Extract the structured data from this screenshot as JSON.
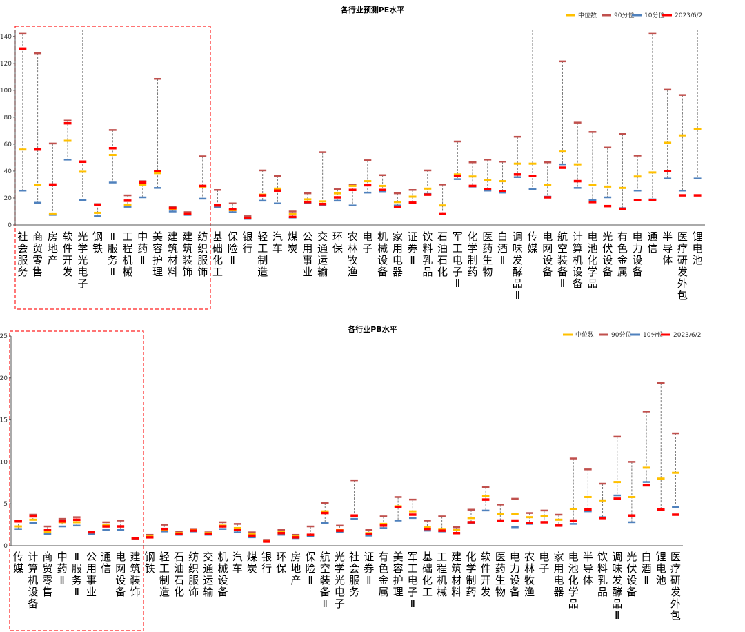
{
  "colors": {
    "median": "#FFC000",
    "p90": "#C0504D",
    "p10": "#4F81BD",
    "current": "#FF0000"
  },
  "chart_data": [
    {
      "type": "range",
      "title": "各行业预测PE水平",
      "legend": [
        "中位数",
        "90分位",
        "10分位",
        "2023/6/2"
      ],
      "ylim": [
        0,
        145
      ],
      "yticks": [
        0,
        20,
        40,
        60,
        80,
        100,
        120,
        140
      ],
      "categories": [
        "社会服务",
        "商贸零售",
        "房地产",
        "软件开发",
        "光学光电子",
        "钢铁",
        "Ⅱ服务Ⅱ",
        "工程机械",
        "中药Ⅱ",
        "美容护理",
        "建筑材料",
        "建筑装饰",
        "纺织服饰",
        "基础化工",
        "保险Ⅱ",
        "银行",
        "轻工制造",
        "汽车",
        "煤炭",
        "公用事业",
        "交通运输",
        "环保",
        "农林牧渔",
        "电子",
        "机械设备",
        "家用电器",
        "证券Ⅱ",
        "饮料乳品",
        "石油石化",
        "军工电子Ⅱ",
        "化学制药",
        "医药生物",
        "白酒Ⅱ",
        "调味发酵品Ⅱ",
        "传媒",
        "电网设备",
        "航空装备Ⅱ",
        "计算机设备",
        "电池化学品",
        "光伏设备",
        "有色金属",
        "电力设备",
        "通信",
        "半导体",
        "医疗研发外包",
        "锂电池"
      ],
      "series": [
        {
          "name": "中位数",
          "values": [
            56,
            29.5,
            8.5,
            62.5,
            39.5,
            9,
            52,
            15,
            30,
            38.5,
            12,
            8.5,
            28.5,
            15,
            11,
            5,
            22.5,
            27,
            8,
            19,
            17.5,
            23.5,
            29,
            32.5,
            29,
            17,
            21,
            27,
            14.5,
            37.5,
            36,
            33.5,
            32.5,
            45.5,
            45.5,
            29.5,
            54.5,
            45,
            29.5,
            28.5,
            27.5,
            36,
            39,
            61,
            66.5,
            71
          ]
        },
        {
          "name": "90分位",
          "values": [
            142,
            127.5,
            60.5,
            77.5,
            149.5,
            15.5,
            70.5,
            22,
            32.5,
            108.5,
            13.5,
            9.5,
            51,
            26,
            16,
            6.5,
            40.5,
            36.5,
            10,
            23.5,
            54,
            26.5,
            30,
            48,
            37,
            23.5,
            26,
            40.5,
            30,
            62,
            46.5,
            48.5,
            47,
            65.5,
            150,
            46.5,
            121.5,
            76,
            69,
            57.5,
            67.5,
            51.5,
            142,
            100.5,
            96.5,
            150
          ]
        },
        {
          "name": "10分位",
          "values": [
            25.5,
            16.5,
            7.5,
            48.5,
            18.5,
            6.5,
            31.5,
            13.5,
            20.5,
            27.5,
            10,
            7.5,
            19.5,
            13,
            9.5,
            4.5,
            18,
            16,
            5.5,
            16.5,
            15,
            18,
            14.5,
            24,
            24.5,
            14.5,
            16.5,
            23,
            8,
            34,
            28.5,
            25.5,
            24,
            35.5,
            26.5,
            21,
            45,
            27.5,
            18.5,
            20.5,
            12.5,
            25.5,
            19,
            34.5,
            25.5,
            34.5
          ]
        },
        {
          "name": "2023/6/2",
          "values": [
            131,
            56,
            30,
            75.5,
            47,
            15,
            57,
            18,
            31.5,
            40,
            12.5,
            8.5,
            29,
            14.5,
            11.5,
            5,
            22,
            25.5,
            6,
            17,
            15.5,
            20.5,
            26,
            29.5,
            26,
            13.5,
            16.5,
            22.5,
            8.5,
            36.5,
            29,
            26.5,
            25,
            37.5,
            36.5,
            20.5,
            42.5,
            32.5,
            17,
            14,
            12,
            18.5,
            18.5,
            40,
            22,
            22
          ]
        }
      ]
    },
    {
      "type": "range",
      "title": "各行业PB水平",
      "legend": [
        "中位数",
        "90分位",
        "10分位",
        "2023/6/2"
      ],
      "ylim": [
        0,
        25
      ],
      "yticks": [
        0,
        5,
        10,
        15,
        20,
        25
      ],
      "categories": [
        "传媒",
        "计算机设备",
        "商贸零售",
        "中药Ⅱ",
        "Ⅱ服务Ⅱ",
        "公用事业",
        "通信",
        "电网设备",
        "建筑装饰",
        "钢铁",
        "轻工制造",
        "石油石化",
        "纺织服饰",
        "交通运输",
        "机械设备",
        "汽车",
        "煤炭",
        "银行",
        "环保",
        "房地产",
        "保险Ⅱ",
        "航空装备Ⅱ",
        "光学光电子",
        "社会服务",
        "证券Ⅱ",
        "有色金属",
        "美容护理",
        "军工电子Ⅱ",
        "基础化工",
        "工程机械",
        "建筑材料",
        "化学制药",
        "软件开发",
        "医药生物",
        "电力设备",
        "农林牧渔",
        "电子",
        "家用电器",
        "电池化学品",
        "半导体",
        "饮料乳品",
        "调味发酵品Ⅱ",
        "光伏设备",
        "白酒Ⅱ",
        "锂电池",
        "医疗研发外包"
      ],
      "series": [
        {
          "name": "中位数",
          "values": [
            2.3,
            3.1,
            1.6,
            2.8,
            2.8,
            1.6,
            2.5,
            2.3,
            0.9,
            1.1,
            1.9,
            1.5,
            1.9,
            1.5,
            2.4,
            2.1,
            1.4,
            0.6,
            1.6,
            1.1,
            1.3,
            4.1,
            1.9,
            3.5,
            1.5,
            2.6,
            4.7,
            4.1,
            2.2,
            2,
            1.9,
            3.3,
            5.9,
            3.8,
            3.8,
            3.4,
            3.5,
            3.1,
            4.4,
            5.8,
            5.4,
            7.6,
            5.8,
            9.3,
            8,
            8.7
          ]
        },
        {
          "name": "90分位",
          "values": [
            3,
            3.7,
            2.3,
            3.2,
            3.4,
            1.7,
            2.8,
            3,
            0.95,
            1.3,
            2.5,
            1.7,
            2,
            1.6,
            2.8,
            2.6,
            1.6,
            0.7,
            1.9,
            1.3,
            2.3,
            5.1,
            2.4,
            7.8,
            1.9,
            3.5,
            5.8,
            5.5,
            3,
            3.5,
            2.2,
            4.3,
            7,
            4.9,
            5.6,
            3.9,
            4.2,
            3.7,
            10.4,
            9.1,
            7.4,
            13,
            10,
            16,
            19.4,
            13.4
          ]
        },
        {
          "name": "10分位",
          "values": [
            2,
            2.7,
            1.4,
            2.3,
            2.4,
            1.4,
            1.9,
            1.9,
            0.85,
            1,
            1.7,
            1.3,
            1.7,
            1.3,
            2,
            1.6,
            1,
            0.5,
            1.3,
            0.9,
            1.1,
            2.7,
            1.6,
            3.2,
            1.2,
            2.1,
            3,
            3.3,
            1.8,
            1.7,
            1.5,
            2.7,
            4.2,
            3,
            2.2,
            2.6,
            2.8,
            2.5,
            2.6,
            4.1,
            3.4,
            6,
            2.8,
            7.6,
            4.3,
            4.6
          ]
        },
        {
          "name": "2023/6/2",
          "values": [
            2.9,
            3.5,
            1.9,
            2.9,
            3.1,
            1.6,
            2.3,
            2.3,
            0.9,
            1,
            2,
            1.4,
            1.8,
            1.4,
            2.3,
            1.9,
            1.2,
            0.5,
            1.5,
            1,
            1.3,
            3.9,
            1.8,
            3.6,
            1.4,
            2.4,
            4.6,
            3.7,
            2,
            1.8,
            1.5,
            2.8,
            5.5,
            3,
            3,
            2.7,
            2.8,
            2.4,
            3,
            4.3,
            3.3,
            5.6,
            3.6,
            7.2,
            4.3,
            3.7
          ]
        }
      ]
    }
  ]
}
